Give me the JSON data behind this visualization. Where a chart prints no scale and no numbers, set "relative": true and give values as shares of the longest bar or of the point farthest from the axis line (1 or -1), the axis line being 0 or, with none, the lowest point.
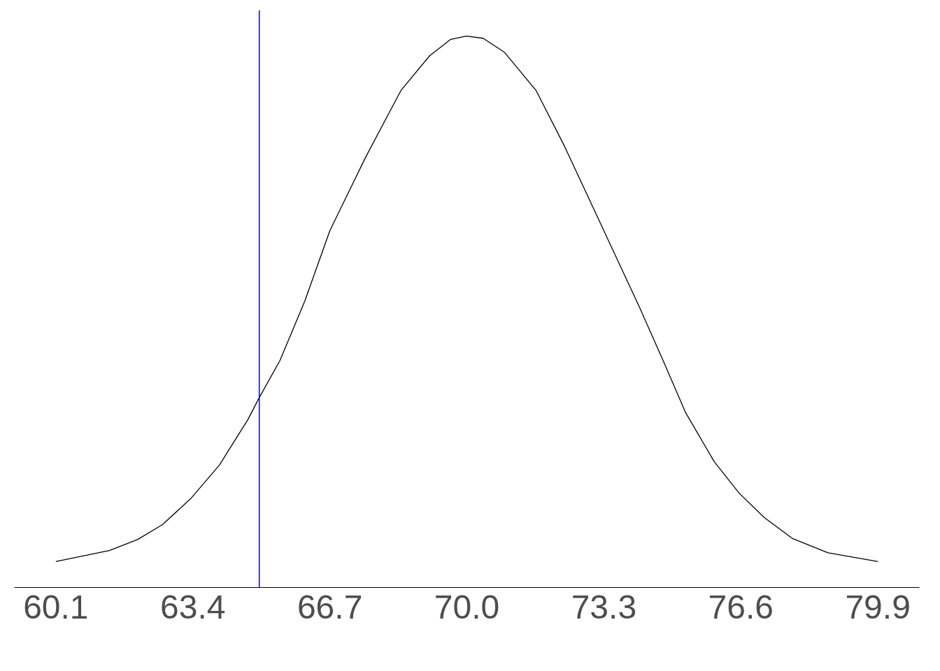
{
  "chart_data": {
    "type": "line",
    "relative": true,
    "x": [
      60.1,
      61.39,
      62.07,
      62.67,
      63.36,
      64.04,
      64.73,
      64.99,
      65.5,
      66.1,
      66.7,
      67.56,
      68.41,
      69.1,
      69.61,
      69.99,
      70.39,
      70.9,
      71.67,
      72.36,
      73.3,
      74.16,
      74.76,
      75.27,
      75.96,
      76.56,
      77.16,
      77.84,
      78.7,
      79.9
    ],
    "series": [
      {
        "color": "#000000",
        "values": [
          0.047,
          0.067,
          0.087,
          0.114,
          0.162,
          0.222,
          0.305,
          0.343,
          0.412,
          0.52,
          0.647,
          0.78,
          0.901,
          0.964,
          0.994,
          1.0,
          0.996,
          0.971,
          0.901,
          0.799,
          0.647,
          0.508,
          0.406,
          0.317,
          0.228,
          0.171,
          0.127,
          0.089,
          0.063,
          0.047
        ]
      }
    ],
    "xlim": [
      59.1,
      80.9
    ],
    "xticks": [
      60.1,
      63.4,
      66.7,
      {
        "value": 70,
        "label": "70.0"
      },
      73.3,
      76.6,
      79.9
    ],
    "ref_lines": [
      {
        "axis": "x",
        "value": 65.0,
        "label": null,
        "color": "#0000ff"
      }
    ],
    "grid": false,
    "marker": "none",
    "line_style": "solid"
  }
}
